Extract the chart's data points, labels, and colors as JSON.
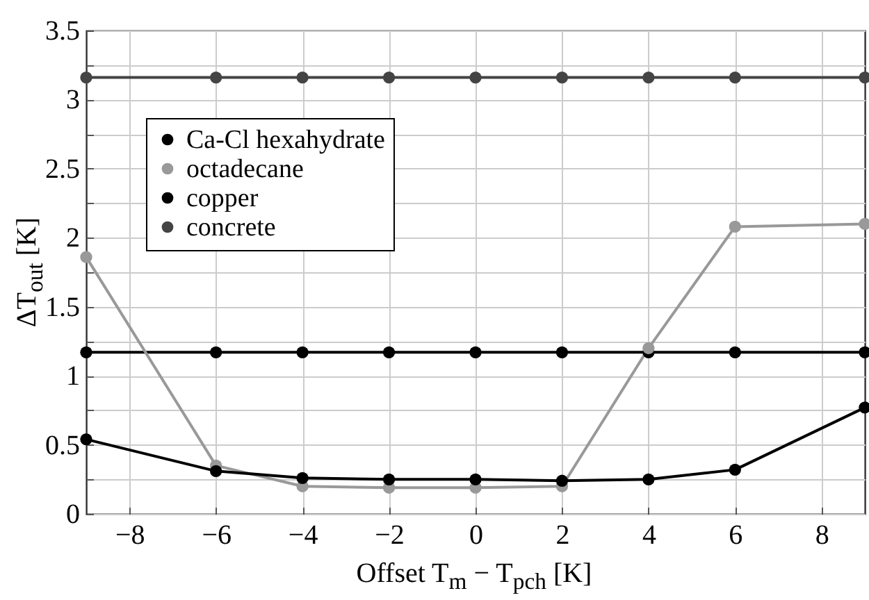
{
  "chart_data": {
    "type": "line",
    "xlabel": "Offset  T$_{m}$ − T$_{pch}$ [K]",
    "ylabel": "ΔT$_{out}$ [K]",
    "x": [
      -9,
      -6,
      -4,
      -2,
      0,
      2,
      4,
      6,
      9
    ],
    "series": [
      {
        "name": "Ca-Cl hexahydrate",
        "color": "#000000",
        "values": [
          0.54,
          0.31,
          0.26,
          0.25,
          0.25,
          0.24,
          0.25,
          0.32,
          0.77
        ]
      },
      {
        "name": "octadecane",
        "color": "#999999",
        "values": [
          1.86,
          0.35,
          0.2,
          0.19,
          0.19,
          0.2,
          1.2,
          2.08,
          2.1
        ]
      },
      {
        "name": "copper",
        "color": "#000000",
        "values": [
          1.17,
          1.17,
          1.17,
          1.17,
          1.17,
          1.17,
          1.17,
          1.17,
          1.17
        ]
      },
      {
        "name": "concrete",
        "color": "#444444",
        "values": [
          3.16,
          3.16,
          3.16,
          3.16,
          3.16,
          3.16,
          3.16,
          3.16,
          3.16
        ]
      }
    ],
    "xlim": [
      -9,
      9
    ],
    "xticks": [
      {
        "value": -8,
        "label": "−8"
      },
      {
        "value": -6,
        "label": "−6"
      },
      {
        "value": -4,
        "label": "−4"
      },
      {
        "value": -2,
        "label": "−2"
      },
      0,
      2,
      4,
      6,
      8
    ],
    "ylim": [
      0,
      3.5
    ],
    "yticks": [
      0,
      {
        "value": 0.25,
        "label": null
      },
      0.5,
      {
        "value": 0.75,
        "label": null
      },
      1,
      {
        "value": 1.25,
        "label": null
      },
      1.5,
      {
        "value": 1.75,
        "label": null
      },
      2,
      {
        "value": 2.25,
        "label": null
      },
      2.5,
      {
        "value": 2.75,
        "label": null
      },
      3,
      {
        "value": 3.25,
        "label": null
      },
      3.5
    ],
    "grid": true,
    "legend": "top left",
    "marker": "circle",
    "line_style": "solid"
  }
}
